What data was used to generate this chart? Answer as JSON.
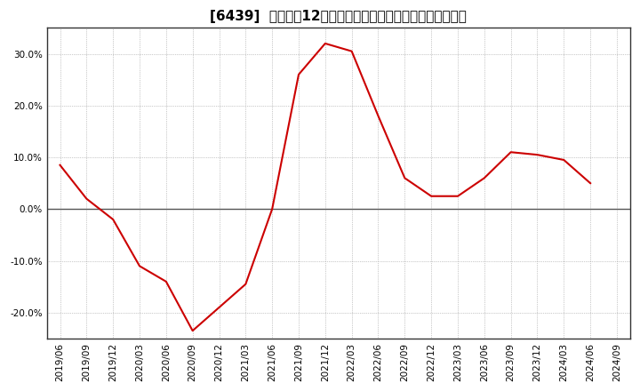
{
  "title": "[6439]  売上高の12か月移動合計の対前年同期増減率の推移",
  "x_labels": [
    "2019/06",
    "2019/09",
    "2019/12",
    "2020/03",
    "2020/06",
    "2020/09",
    "2020/12",
    "2021/03",
    "2021/06",
    "2021/09",
    "2021/12",
    "2022/03",
    "2022/06",
    "2022/09",
    "2022/12",
    "2023/03",
    "2023/06",
    "2023/09",
    "2023/12",
    "2024/03",
    "2024/06",
    "2024/09"
  ],
  "values": [
    8.5,
    2.0,
    -2.0,
    -11.0,
    -14.0,
    -23.5,
    -19.0,
    -14.5,
    0.0,
    26.0,
    32.0,
    30.5,
    18.0,
    6.0,
    2.5,
    2.5,
    6.0,
    11.0,
    10.5,
    9.5,
    5.0,
    null
  ],
  "line_color": "#cc0000",
  "background_color": "#ffffff",
  "plot_bg_color": "#ffffff",
  "grid_color": "#999999",
  "zero_line_color": "#555555",
  "spine_color": "#333333",
  "ylim": [
    -25,
    35
  ],
  "yticks": [
    -20.0,
    -10.0,
    0.0,
    10.0,
    20.0,
    30.0
  ],
  "title_fontsize": 11,
  "tick_fontsize": 7.5
}
